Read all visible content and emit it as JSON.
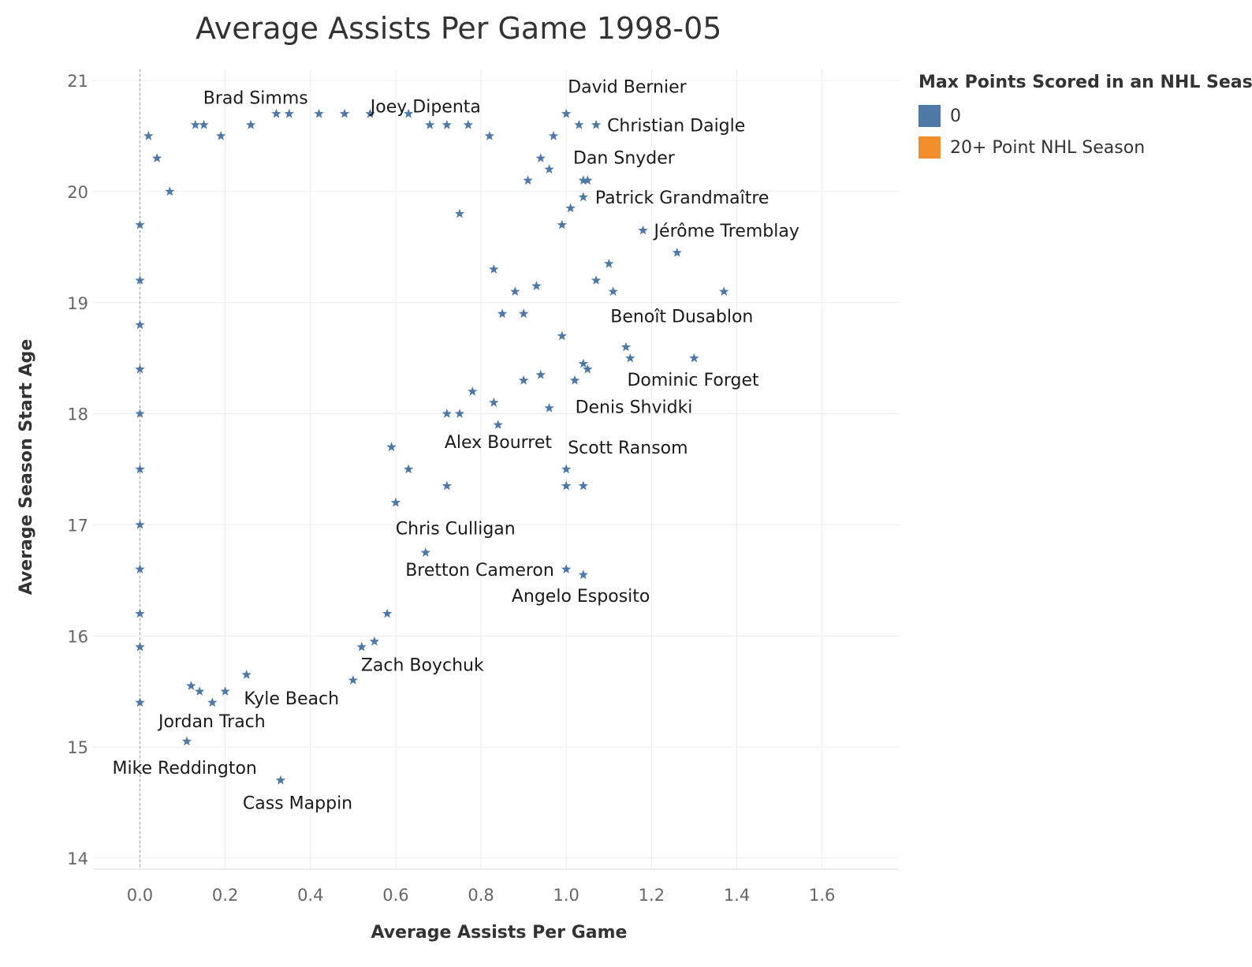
{
  "chart_data": {
    "type": "scatter",
    "title": "Average Assists Per Game 1998-05",
    "xlabel": "Average Assists Per Game",
    "ylabel": "Average Season Start Age",
    "xlim": [
      -0.11,
      1.78
    ],
    "ylim": [
      13.9,
      21.1
    ],
    "x_ticks": [
      "0.0",
      "0.2",
      "0.4",
      "0.6",
      "0.8",
      "1.0",
      "1.2",
      "1.4",
      "1.6"
    ],
    "y_ticks": [
      "14",
      "15",
      "16",
      "17",
      "18",
      "19",
      "20",
      "21"
    ],
    "grid": true,
    "reference_line": {
      "x": 0.0,
      "style": "dashed"
    },
    "marker": "star",
    "legend": {
      "title": "Max Points Scored in an NHL Season",
      "placement": "right",
      "entries": [
        {
          "label": "0",
          "color": "#4e79a7"
        },
        {
          "label": "20+ Point NHL Season",
          "color": "#f28e2b"
        }
      ]
    },
    "series": [
      {
        "name": "0",
        "color": "#4e79a7",
        "points": [
          [
            0.0,
            19.7
          ],
          [
            0.0,
            15.4
          ],
          [
            0.0,
            15.9
          ],
          [
            0.0,
            16.2
          ],
          [
            0.0,
            16.6
          ],
          [
            0.0,
            17.0
          ],
          [
            0.0,
            17.5
          ],
          [
            0.0,
            18.0
          ],
          [
            0.0,
            18.4
          ],
          [
            0.0,
            18.8
          ],
          [
            0.0,
            19.2
          ],
          [
            0.02,
            20.5
          ],
          [
            0.04,
            20.3
          ],
          [
            0.07,
            20.0
          ],
          [
            0.11,
            15.05
          ],
          [
            0.33,
            14.7
          ],
          [
            0.13,
            20.6
          ],
          [
            0.15,
            20.6
          ],
          [
            0.19,
            20.5
          ],
          [
            0.26,
            20.6
          ],
          [
            0.32,
            20.7
          ],
          [
            0.35,
            20.7
          ],
          [
            0.42,
            20.7
          ],
          [
            0.48,
            20.7
          ],
          [
            0.54,
            20.7
          ],
          [
            0.63,
            20.7
          ],
          [
            0.68,
            20.6
          ],
          [
            0.72,
            20.6
          ],
          [
            0.77,
            20.6
          ],
          [
            0.82,
            20.5
          ],
          [
            0.91,
            20.1
          ],
          [
            0.94,
            20.3
          ],
          [
            1.0,
            20.7
          ],
          [
            1.03,
            20.6
          ],
          [
            1.07,
            20.6
          ],
          [
            0.97,
            20.5
          ],
          [
            0.96,
            20.2
          ],
          [
            1.04,
            20.1
          ],
          [
            1.05,
            20.1
          ],
          [
            1.04,
            19.95
          ],
          [
            1.01,
            19.85
          ],
          [
            0.99,
            19.7
          ],
          [
            1.18,
            19.65
          ],
          [
            1.26,
            19.45
          ],
          [
            1.37,
            19.1
          ],
          [
            1.1,
            19.35
          ],
          [
            1.07,
            19.2
          ],
          [
            1.11,
            19.1
          ],
          [
            1.14,
            18.6
          ],
          [
            1.15,
            18.5
          ],
          [
            1.3,
            18.5
          ],
          [
            1.04,
            18.45
          ],
          [
            1.05,
            18.4
          ],
          [
            1.02,
            18.3
          ],
          [
            0.96,
            18.05
          ],
          [
            0.99,
            18.7
          ],
          [
            1.0,
            17.5
          ],
          [
            1.0,
            17.35
          ],
          [
            1.04,
            17.35
          ],
          [
            0.72,
            17.35
          ],
          [
            0.67,
            16.75
          ],
          [
            1.0,
            16.6
          ],
          [
            1.04,
            16.55
          ],
          [
            0.58,
            16.2
          ],
          [
            0.55,
            15.95
          ],
          [
            0.52,
            15.9
          ],
          [
            0.5,
            15.6
          ],
          [
            0.25,
            15.65
          ],
          [
            0.2,
            15.5
          ],
          [
            0.17,
            15.4
          ],
          [
            0.12,
            15.55
          ],
          [
            0.14,
            15.5
          ],
          [
            0.6,
            17.2
          ],
          [
            0.63,
            17.5
          ],
          [
            0.59,
            17.7
          ],
          [
            0.72,
            18.0
          ],
          [
            0.75,
            18.0
          ],
          [
            0.84,
            17.9
          ],
          [
            0.83,
            18.1
          ],
          [
            0.78,
            18.2
          ],
          [
            0.9,
            18.3
          ],
          [
            0.94,
            18.35
          ],
          [
            0.85,
            18.9
          ],
          [
            0.9,
            18.9
          ],
          [
            0.88,
            19.1
          ],
          [
            0.93,
            19.15
          ],
          [
            0.83,
            19.3
          ],
          [
            0.75,
            19.8
          ]
        ]
      }
    ],
    "annotations": [
      {
        "label": "Brad Simms",
        "x": 0.13,
        "y": 20.6
      },
      {
        "label": "Joey Dipenta",
        "x": 0.67,
        "y": 20.6
      },
      {
        "label": "David Bernier",
        "x": 1.0,
        "y": 20.7
      },
      {
        "label": "Christian Daigle",
        "x": 1.07,
        "y": 20.6
      },
      {
        "label": "Dan Snyder",
        "x": 0.97,
        "y": 20.3
      },
      {
        "label": "Patrick Grandmaître",
        "x": 1.04,
        "y": 19.95
      },
      {
        "label": "Jérôme Tremblay",
        "x": 1.18,
        "y": 19.65
      },
      {
        "label": "Benoît Dusablon",
        "x": 1.37,
        "y": 19.1
      },
      {
        "label": "Dominic Forget",
        "x": 1.3,
        "y": 18.5
      },
      {
        "label": "Denis Shvidki",
        "x": 0.96,
        "y": 18.05
      },
      {
        "label": "Alex Bourret",
        "x": 0.72,
        "y": 17.35
      },
      {
        "label": "Scott Ransom",
        "x": 1.0,
        "y": 17.35
      },
      {
        "label": "Chris Culligan",
        "x": 0.67,
        "y": 16.75
      },
      {
        "label": "Bretton Cameron",
        "x": 1.0,
        "y": 16.6
      },
      {
        "label": "Angelo Esposito",
        "x": 1.04,
        "y": 16.55
      },
      {
        "label": "Zach Boychuk",
        "x": 0.5,
        "y": 15.6
      },
      {
        "label": "Kyle Beach",
        "x": 0.17,
        "y": 15.4
      },
      {
        "label": "Jordan Trach",
        "x": 0.11,
        "y": 15.05
      },
      {
        "label": "Mike Reddington",
        "x": 0.0,
        "y": 15.4
      },
      {
        "label": "Cass Mappin",
        "x": 0.33,
        "y": 14.7
      }
    ]
  }
}
